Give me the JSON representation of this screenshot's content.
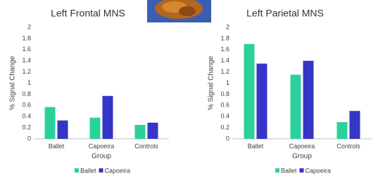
{
  "chart_data": [
    {
      "type": "bar",
      "title": "Left Frontal MNS",
      "x_label": "Group",
      "y_label": "% Signal Change",
      "categories": [
        "Ballet",
        "Capoeira",
        "Controls"
      ],
      "series": [
        {
          "name": "Ballet",
          "color": "#2bd19b",
          "values": [
            0.57,
            0.38,
            0.25
          ]
        },
        {
          "name": "Capoeira",
          "color": "#3535c8",
          "values": [
            0.33,
            0.77,
            0.29
          ]
        }
      ],
      "ylim": [
        0,
        2
      ],
      "yticks": [
        0,
        0.2,
        0.4,
        0.6,
        0.8,
        1,
        1.2,
        1.4,
        1.6,
        1.8,
        2
      ],
      "grid": false,
      "legend": "bottom"
    },
    {
      "type": "bar",
      "title": "Left Parietal MNS",
      "x_label": "Group",
      "y_label": "% Signal Change",
      "categories": [
        "Ballet",
        "Capoeira",
        "Controls"
      ],
      "series": [
        {
          "name": "Ballet",
          "color": "#2bd19b",
          "values": [
            1.7,
            1.15,
            0.3
          ]
        },
        {
          "name": "Capoeira",
          "color": "#3535c8",
          "values": [
            1.35,
            1.4,
            0.5
          ]
        }
      ],
      "ylim": [
        0,
        2
      ],
      "yticks": [
        0,
        0.2,
        0.4,
        0.6,
        0.8,
        1,
        1.2,
        1.4,
        1.6,
        1.8,
        2
      ],
      "grid": false,
      "legend": "bottom"
    }
  ]
}
